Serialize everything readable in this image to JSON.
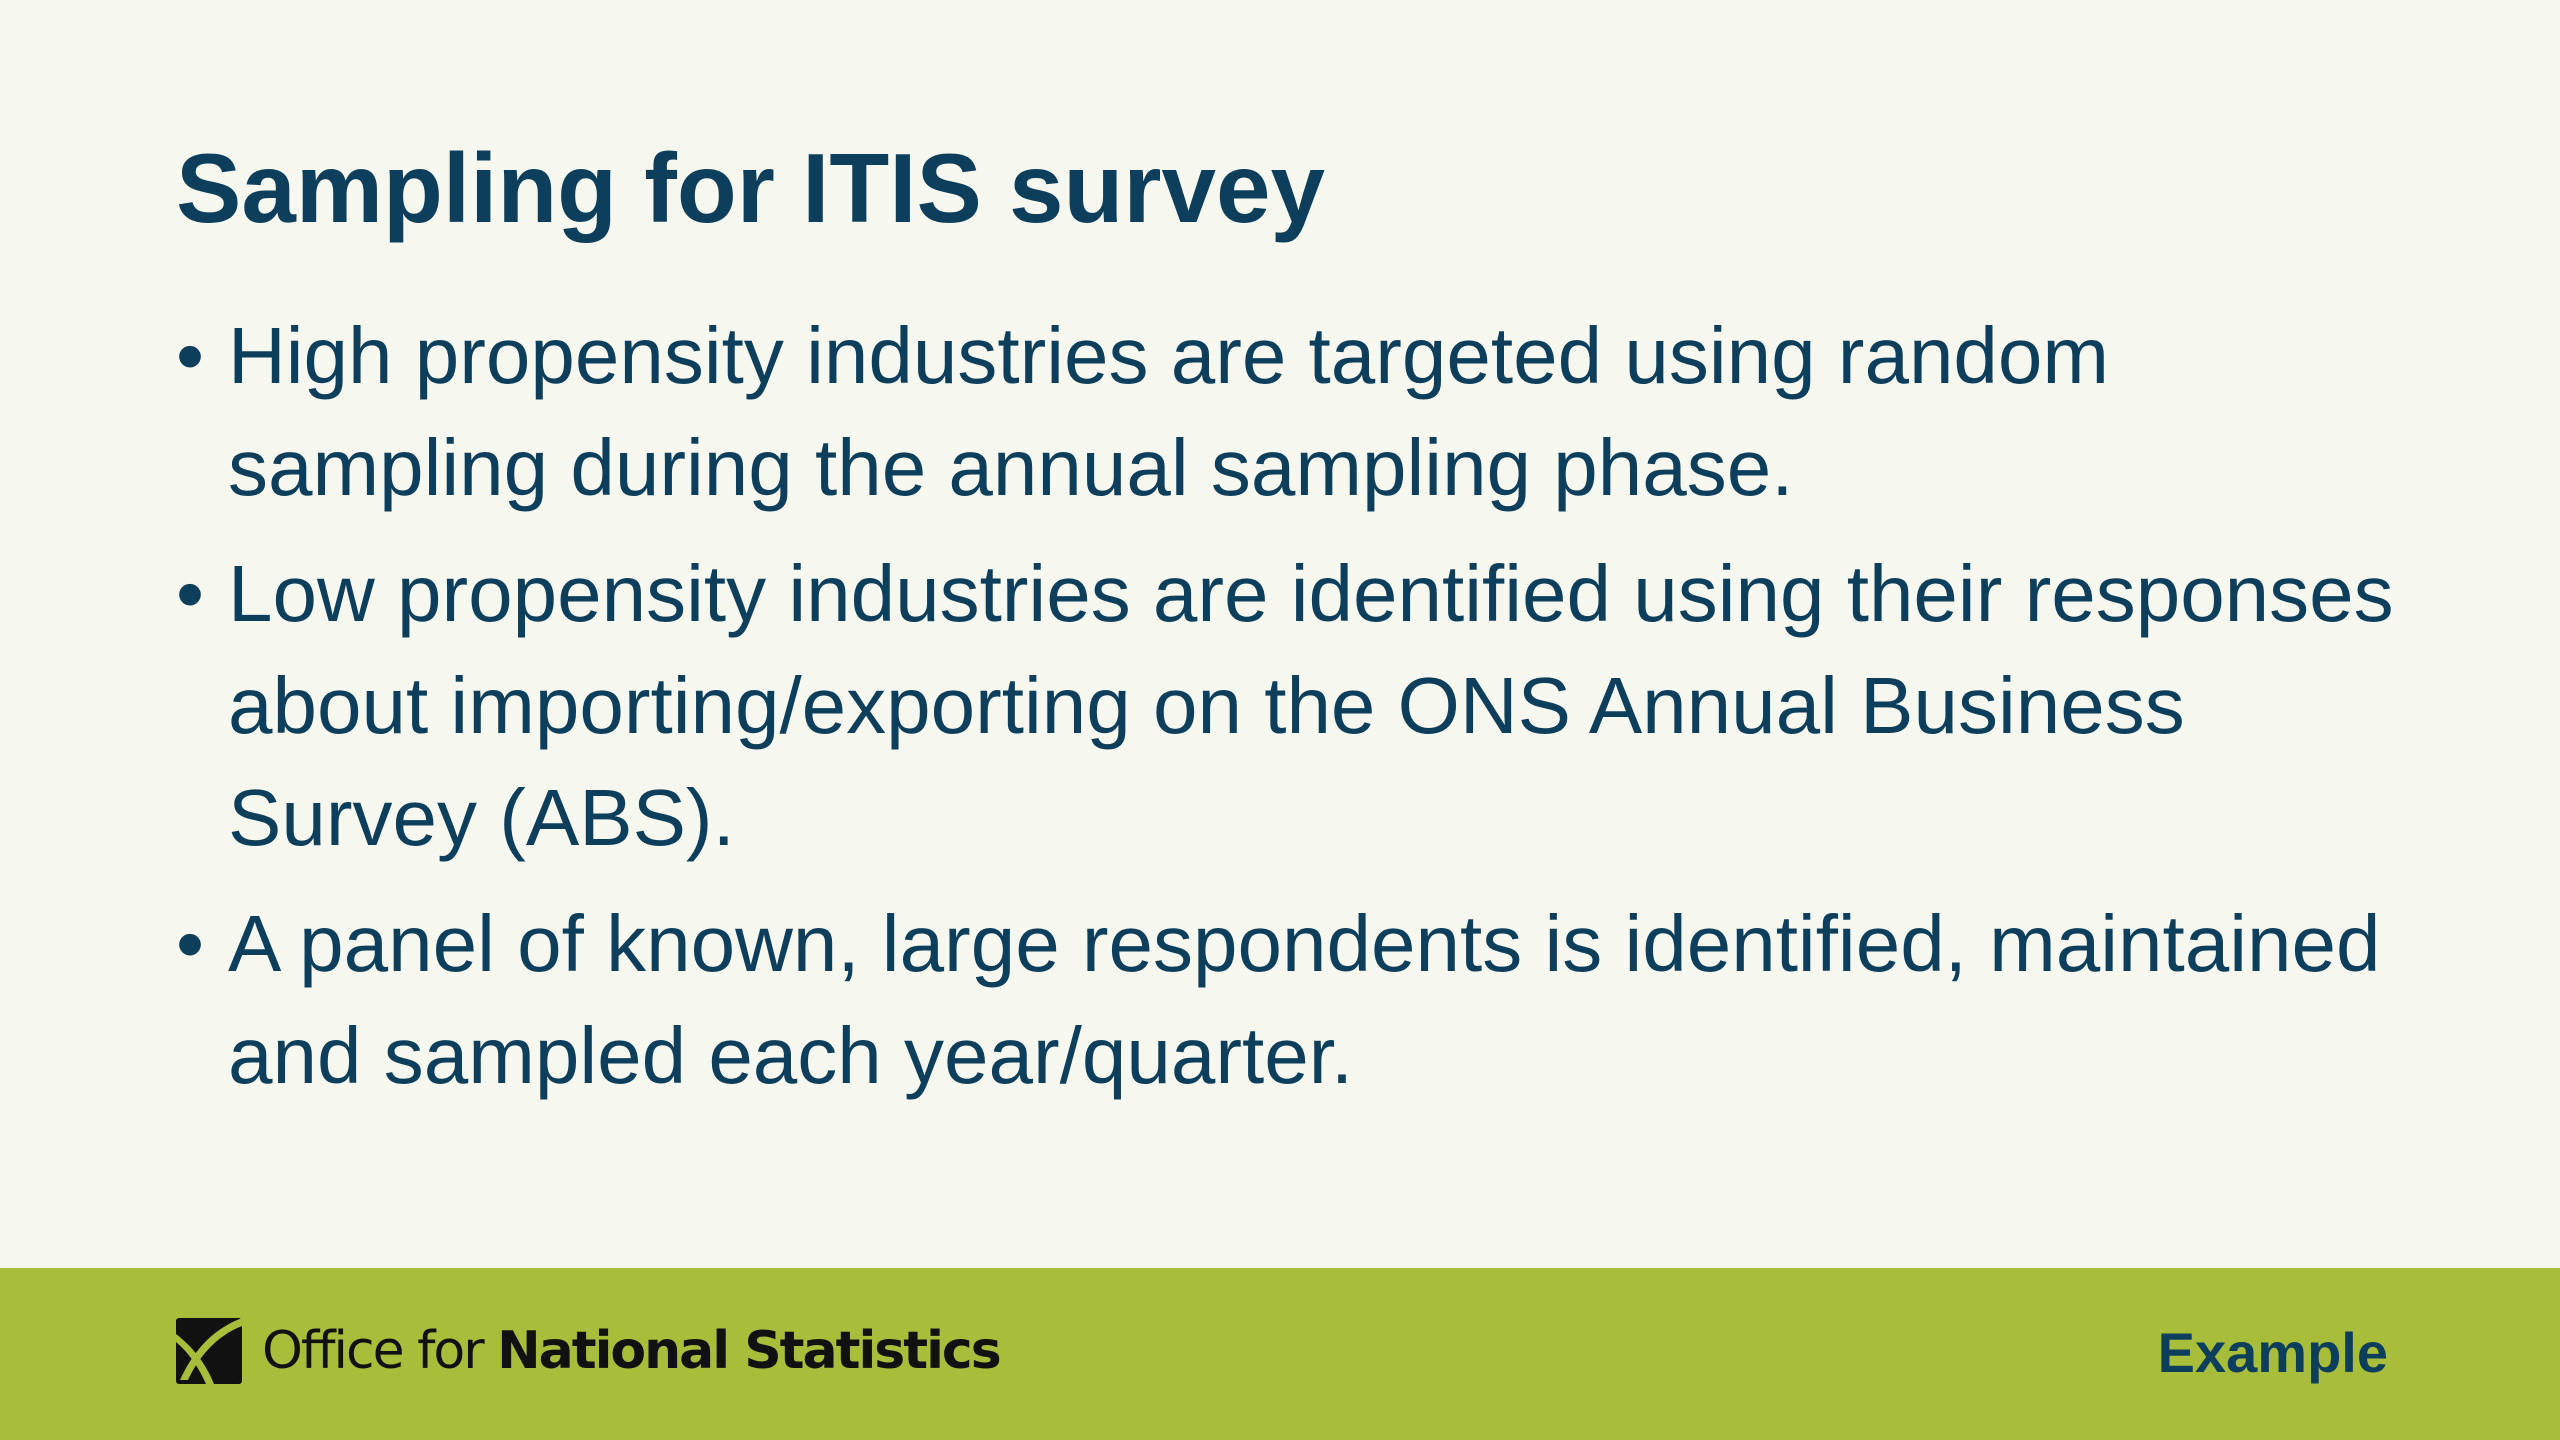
{
  "slide": {
    "title": "Sampling for ITIS survey",
    "bullets": [
      {
        "text": "High propensity industries are targeted using random sampling during the annual sampling phase."
      },
      {
        "text": "Low propensity industries are identified using their responses about importing/exporting on the ONS Annual Business Survey (ABS)."
      },
      {
        "text": "A panel of known, large respondents is identified, maintained and sampled each year/quarter."
      }
    ],
    "bullet_symbol": "•"
  },
  "footer": {
    "logo_icon": "ons-logo-icon",
    "logo_text_light": "Office for ",
    "logo_text_bold": "National Statistics",
    "tag": "Example"
  },
  "colors": {
    "background": "#f6f7ee",
    "text": "#0d3f5c",
    "footer_band": "#a8bd3a",
    "logo_text": "#111111"
  }
}
